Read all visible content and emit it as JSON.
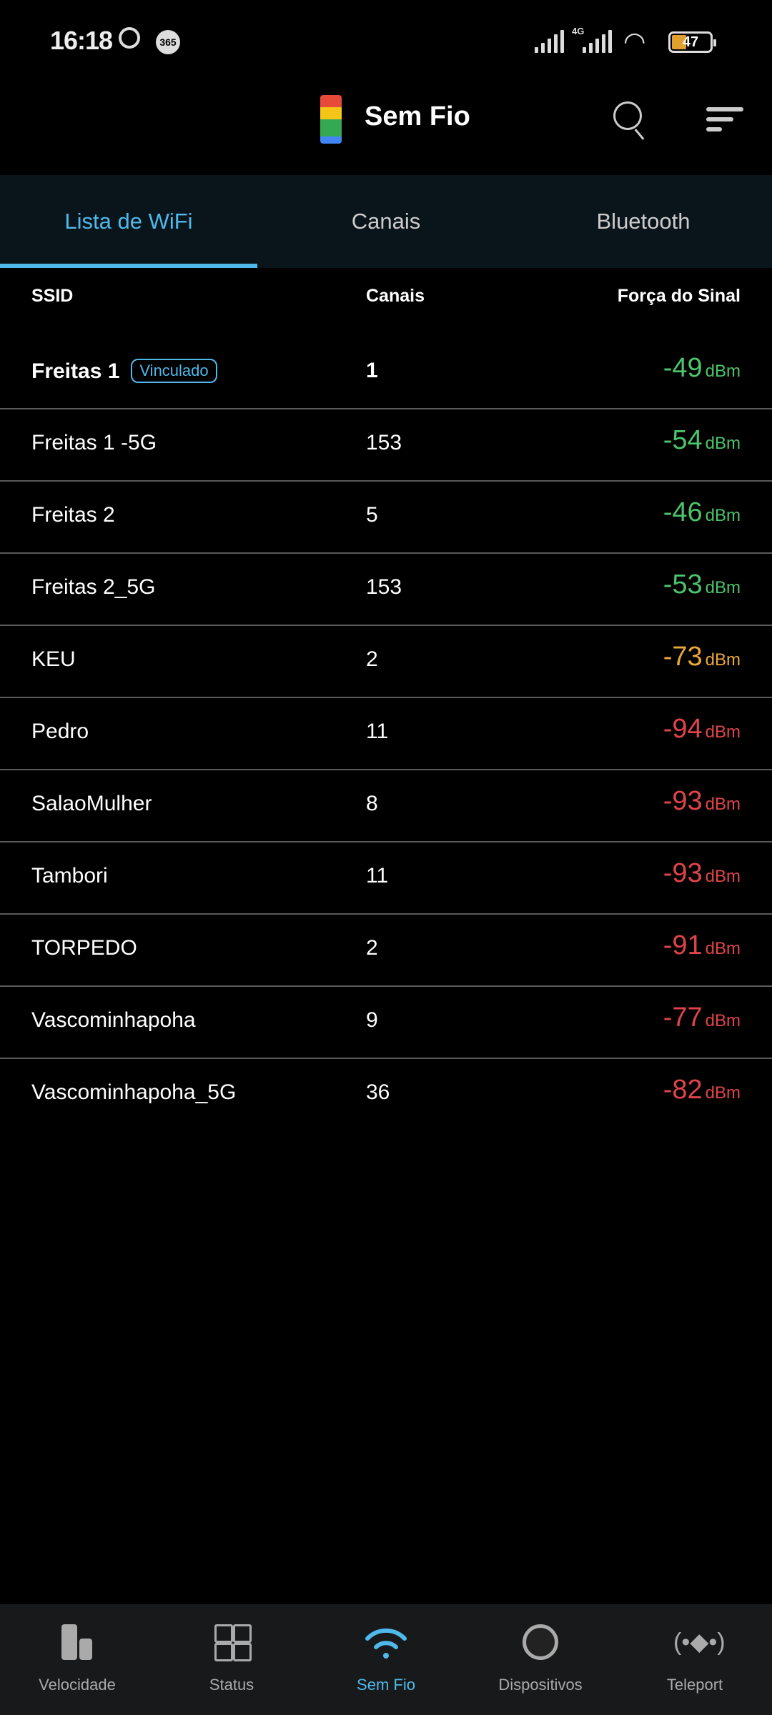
{
  "status_bar": {
    "time": "16:18",
    "badge": "365",
    "network": "4G",
    "battery": "47",
    "battery_level": 0.47
  },
  "header": {
    "title": "Sem Fio"
  },
  "tabs": [
    {
      "label": "Lista de WiFi",
      "active": true
    },
    {
      "label": "Canais",
      "active": false
    },
    {
      "label": "Bluetooth",
      "active": false
    }
  ],
  "table": {
    "headers": {
      "ssid": "SSID",
      "channel": "Canais",
      "signal": "Força do Sinal"
    },
    "unit": "dBm",
    "rows": [
      {
        "ssid": "Freitas 1",
        "badge": "Vinculado",
        "channel": "1",
        "signal": "-49",
        "color": "#4cc46c"
      },
      {
        "ssid": "Freitas 1 -5G",
        "channel": "153",
        "signal": "-54",
        "color": "#4cc46c"
      },
      {
        "ssid": "Freitas 2",
        "channel": "5",
        "signal": "-46",
        "color": "#4cc46c"
      },
      {
        "ssid": "Freitas 2_5G",
        "channel": "153",
        "signal": "-53",
        "color": "#4cc46c"
      },
      {
        "ssid": "KEU",
        "channel": "2",
        "signal": "-73",
        "color": "#eaa838"
      },
      {
        "ssid": "Pedro",
        "channel": "11",
        "signal": "-94",
        "color": "#e0444a"
      },
      {
        "ssid": "SalaoMulher",
        "channel": "8",
        "signal": "-93",
        "color": "#e0444a"
      },
      {
        "ssid": "Tambori",
        "channel": "11",
        "signal": "-93",
        "color": "#e0444a"
      },
      {
        "ssid": "TORPEDO",
        "channel": "2",
        "signal": "-91",
        "color": "#e0444a"
      },
      {
        "ssid": "Vascominhapoha",
        "channel": "9",
        "signal": "-77",
        "color": "#e0444a"
      },
      {
        "ssid": "Vascominhapoha_5G",
        "channel": "36",
        "signal": "-82",
        "color": "#e0444a"
      }
    ]
  },
  "bottom_nav": [
    {
      "label": "Velocidade",
      "icon": "bar-chart-icon"
    },
    {
      "label": "Status",
      "icon": "grid-icon"
    },
    {
      "label": "Sem Fio",
      "icon": "wifi-icon",
      "active": true
    },
    {
      "label": "Dispositivos",
      "icon": "circle-icon"
    },
    {
      "label": "Teleport",
      "icon": "teleport-icon"
    }
  ],
  "colors": {
    "accent": "#4fb9ea",
    "good": "#4cc46c",
    "medium": "#eaa838",
    "bad": "#e0444a"
  }
}
